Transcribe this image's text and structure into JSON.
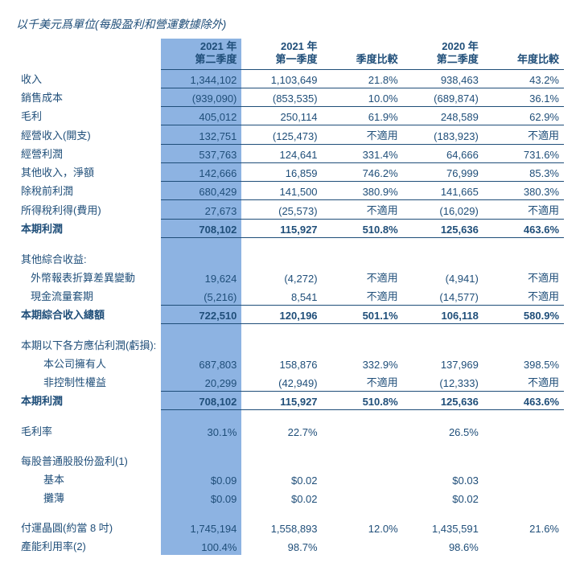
{
  "caption": "以千美元爲單位(每股盈利和營運數據除外)",
  "headers": {
    "col1": "2021 年\n第二季度",
    "col2": "2021 年\n第一季度",
    "col3": "季度比較",
    "col4": "2020 年\n第二季度",
    "col5": "年度比較"
  },
  "rows": [
    {
      "label": "收入",
      "c1": "1,344,102",
      "c2": "1,103,649",
      "c3": "21.8%",
      "c4": "938,463",
      "c5": "43.2%",
      "ul": true
    },
    {
      "label": "銷售成本",
      "c1": "(939,090)",
      "c2": "(853,535)",
      "c3": "10.0%",
      "c4": "(689,874)",
      "c5": "36.1%",
      "ul": true
    },
    {
      "label": "毛利",
      "c1": "405,012",
      "c2": "250,114",
      "c3": "61.9%",
      "c4": "248,589",
      "c5": "62.9%",
      "ul": true
    },
    {
      "label": "經營收入(開支)",
      "c1": "132,751",
      "c2": "(125,473)",
      "c3": "不適用",
      "c4": "(183,923)",
      "c5": "不適用",
      "ul": true
    },
    {
      "label": "經營利潤",
      "c1": "537,763",
      "c2": "124,641",
      "c3": "331.4%",
      "c4": "64,666",
      "c5": "731.6%",
      "ul": true
    },
    {
      "label": "其他收入，淨額",
      "c1": "142,666",
      "c2": "16,859",
      "c3": "746.2%",
      "c4": "76,999",
      "c5": "85.3%",
      "ul": true
    },
    {
      "label": "除稅前利潤",
      "c1": "680,429",
      "c2": "141,500",
      "c3": "380.9%",
      "c4": "141,665",
      "c5": "380.3%",
      "ul": true
    },
    {
      "label": "所得稅利得(費用)",
      "c1": "27,673",
      "c2": "(25,573)",
      "c3": "不適用",
      "c4": "(16,029)",
      "c5": "不適用",
      "ul": true
    },
    {
      "label": "本期利潤",
      "c1": "708,102",
      "c2": "115,927",
      "c3": "510.8%",
      "c4": "125,636",
      "c5": "463.6%",
      "bold": true,
      "ul": true
    }
  ],
  "oci_header": "其他綜合收益:",
  "oci": [
    {
      "label": "外幣報表折算差異變動",
      "c1": "19,624",
      "c2": "(4,272)",
      "c3": "不適用",
      "c4": "(4,941)",
      "c5": "不適用",
      "indent": 1
    },
    {
      "label": "現金流量套期",
      "c1": "(5,216)",
      "c2": "8,541",
      "c3": "不適用",
      "c4": "(14,577)",
      "c5": "不適用",
      "indent": 1,
      "ul": true
    },
    {
      "label": "本期綜合收入總額",
      "c1": "722,510",
      "c2": "120,196",
      "c3": "501.1%",
      "c4": "106,118",
      "c5": "580.9%",
      "bold": true,
      "ul": true
    }
  ],
  "attr_header": "本期以下各方應佔利潤(虧損):",
  "attr": [
    {
      "label": "本公司擁有人",
      "c1": "687,803",
      "c2": "158,876",
      "c3": "332.9%",
      "c4": "137,969",
      "c5": "398.5%",
      "indent": 2
    },
    {
      "label": "非控制性權益",
      "c1": "20,299",
      "c2": "(42,949)",
      "c3": "不適用",
      "c4": "(12,333)",
      "c5": "不適用",
      "indent": 2,
      "ul": true
    },
    {
      "label": "本期利潤",
      "c1": "708,102",
      "c2": "115,927",
      "c3": "510.8%",
      "c4": "125,636",
      "c5": "463.6%",
      "bold": true,
      "ul": true
    }
  ],
  "metrics": [
    {
      "label": "毛利率",
      "c1": "30.1%",
      "c2": "22.7%",
      "c3": "",
      "c4": "26.5%",
      "c5": ""
    }
  ],
  "eps_header": "每股普通股股份盈利(1)",
  "eps": [
    {
      "label": "基本",
      "c1": "$0.09",
      "c2": "$0.02",
      "c3": "",
      "c4": "$0.03",
      "c5": "",
      "indent": 2
    },
    {
      "label": "攤薄",
      "c1": "$0.09",
      "c2": "$0.02",
      "c3": "",
      "c4": "$0.02",
      "c5": "",
      "indent": 2
    }
  ],
  "ops": [
    {
      "label": "付運晶圓(約當 8 吋)",
      "c1": "1,745,194",
      "c2": "1,558,893",
      "c3": "12.0%",
      "c4": "1,435,591",
      "c5": "21.6%"
    },
    {
      "label": "產能利用率(2)",
      "c1": "100.4%",
      "c2": "98.7%",
      "c3": "",
      "c4": "98.6%",
      "c5": ""
    }
  ]
}
